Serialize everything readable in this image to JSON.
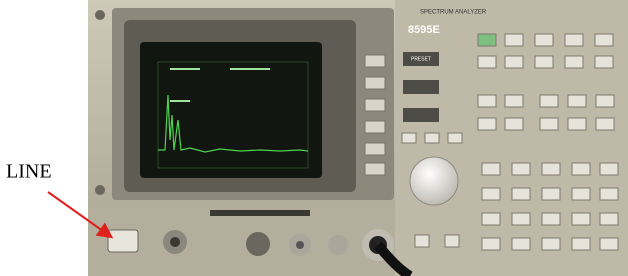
{
  "label": "LINE",
  "panel": {
    "model": "8595E",
    "product": "SPECTRUM ANALYZER",
    "preset_key": "PRESET"
  }
}
